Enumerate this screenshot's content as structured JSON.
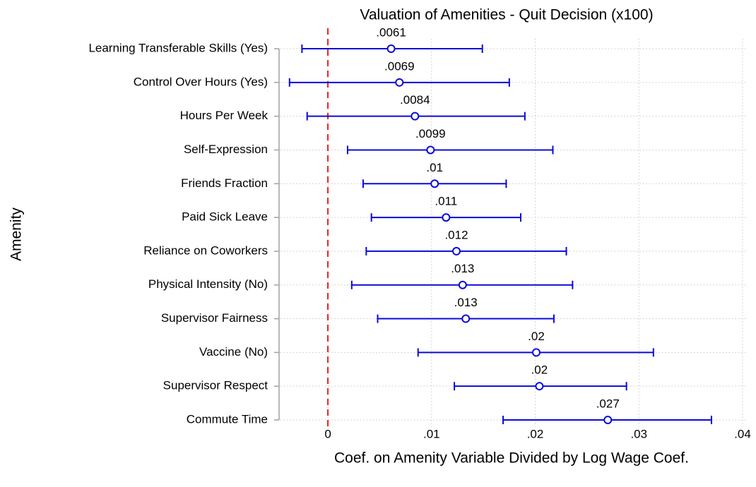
{
  "chart_data": {
    "type": "coefplot",
    "title": "Valuation of Amenities - Quit Decision (x100)",
    "x_label": "Coef. on Amenity Variable Divided by Log Wage Coef.",
    "y_label": "Amenity",
    "categories": [
      "Learning Transferable Skills (Yes)",
      "Control Over Hours (Yes)",
      "Hours Per Week",
      "Self-Expression",
      "Friends Fraction",
      "Paid Sick Leave",
      "Reliance on Coworkers",
      "Physical Intensity (No)",
      "Supervisor Fairness",
      "Vaccine (No)",
      "Supervisor Respect",
      "Commute Time"
    ],
    "values": [
      0.0061,
      0.0069,
      0.0084,
      0.0099,
      0.0103,
      0.0114,
      0.0124,
      0.013,
      0.0133,
      0.0201,
      0.0204,
      0.027
    ],
    "value_labels": [
      ".0061",
      ".0069",
      ".0084",
      ".0099",
      ".01",
      ".011",
      ".012",
      ".013",
      ".013",
      ".02",
      ".02",
      ".027"
    ],
    "lower": [
      -0.0025,
      -0.0037,
      -0.002,
      0.0019,
      0.0034,
      0.0042,
      0.0037,
      0.0023,
      0.0048,
      0.0087,
      0.0122,
      0.0169
    ],
    "upper": [
      0.0149,
      0.0175,
      0.019,
      0.0217,
      0.0172,
      0.0186,
      0.023,
      0.0236,
      0.0218,
      0.0314,
      0.0288,
      0.037
    ],
    "color": "#0a0adc",
    "xline": 0,
    "xline_color": "#e8231d",
    "xlim": [
      -0.00457,
      0.04
    ],
    "xticks": [
      0,
      {
        "value": 0.01,
        "label": ".01"
      },
      {
        "value": 0.02,
        "label": ".02"
      },
      {
        "value": 0.03,
        "label": ".03"
      },
      {
        "value": 0.04,
        "label": ".04"
      }
    ],
    "grid": true
  }
}
